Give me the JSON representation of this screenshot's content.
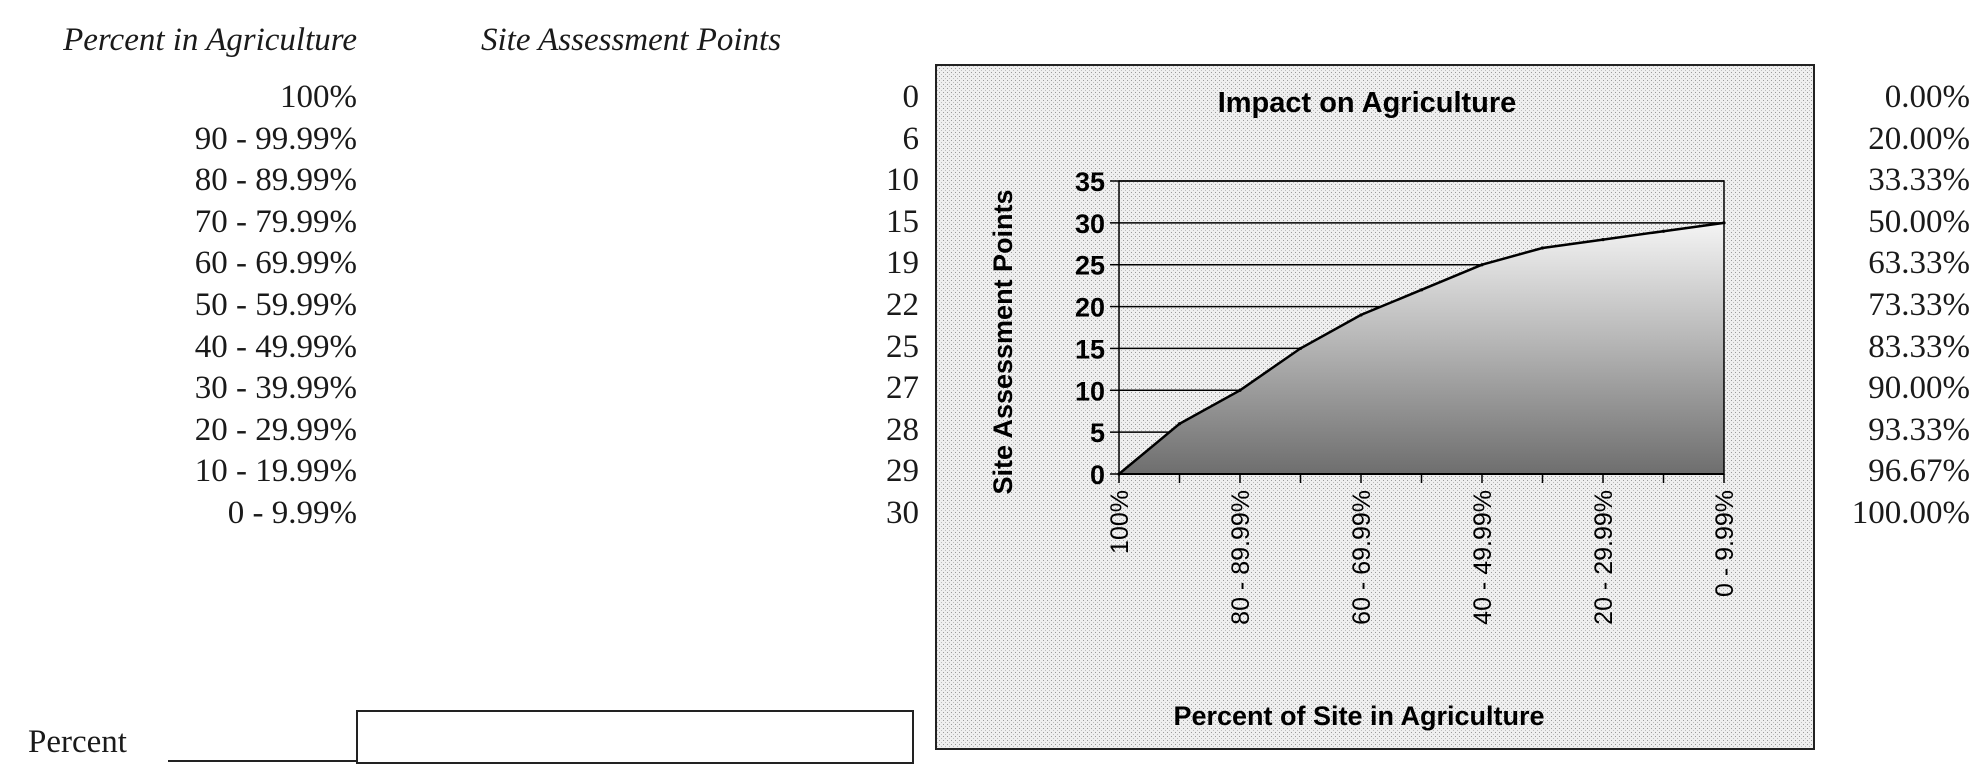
{
  "headers": {
    "percent_in_agriculture": "Percent in Agriculture",
    "site_assessment_points": "Site Assessment Points"
  },
  "rows": [
    {
      "range": "100%",
      "points": "0",
      "share": "0.00%"
    },
    {
      "range": "90 - 99.99%",
      "points": "6",
      "share": "20.00%"
    },
    {
      "range": "80 - 89.99%",
      "points": "10",
      "share": "33.33%"
    },
    {
      "range": "70 - 79.99%",
      "points": "15",
      "share": "50.00%"
    },
    {
      "range": "60 - 69.99%",
      "points": "19",
      "share": "63.33%"
    },
    {
      "range": "50 - 59.99%",
      "points": "22",
      "share": "73.33%"
    },
    {
      "range": "40 - 49.99%",
      "points": "25",
      "share": "83.33%"
    },
    {
      "range": "30 - 39.99%",
      "points": "27",
      "share": "90.00%"
    },
    {
      "range": "20 - 29.99%",
      "points": "28",
      "share": "93.33%"
    },
    {
      "range": "10 - 19.99%",
      "points": "29",
      "share": "96.67%"
    },
    {
      "range": "0 - 9.99%",
      "points": "30",
      "share": "100.00%"
    }
  ],
  "percent_field": {
    "label": "Percent",
    "value": ""
  },
  "chart_data": {
    "type": "area",
    "title": "Impact on Agriculture",
    "xlabel": "Percent of Site in Agriculture",
    "ylabel": "Site Assessment Points",
    "categories": [
      "100%",
      "90 - 99.99%",
      "80 - 89.99%",
      "70 - 79.99%",
      "60 - 69.99%",
      "50 - 59.99%",
      "40 - 49.99%",
      "30 - 39.99%",
      "20 - 29.99%",
      "10 - 19.99%",
      "0 - 9.99%"
    ],
    "tick_labels_shown": [
      "100%",
      "80 - 89.99%",
      "60 - 69.99%",
      "40 - 49.99%",
      "20 - 29.99%",
      "0 - 9.99%"
    ],
    "values": [
      0,
      6,
      10,
      15,
      19,
      22,
      25,
      27,
      28,
      29,
      30
    ],
    "ylim": [
      0,
      35
    ],
    "yticks": [
      0,
      5,
      10,
      15,
      20,
      25,
      30,
      35
    ],
    "grid": "horizontal",
    "legend": "none",
    "colors": {
      "line": "#000000",
      "fill_dark": "#6e6e6e",
      "fill_light": "#f4f4f4",
      "background": "#e9e9e9",
      "border": "#222222"
    }
  }
}
